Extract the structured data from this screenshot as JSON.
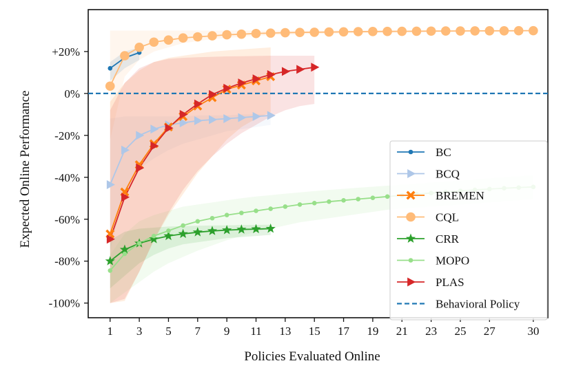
{
  "chart_data": {
    "type": "line",
    "title": "",
    "xlabel": "Policies Evaluated Online",
    "ylabel": "Expected Online Performance",
    "xlim": [
      -0.5,
      31
    ],
    "ylim": [
      -107,
      40
    ],
    "xticks": [
      1,
      3,
      5,
      7,
      9,
      11,
      13,
      15,
      17,
      19,
      21,
      23,
      25,
      27,
      30
    ],
    "yticks": [
      {
        "value": 20,
        "label": "+20%"
      },
      {
        "value": 0,
        "label": "0%"
      },
      {
        "value": -20,
        "label": "-20%"
      },
      {
        "value": -40,
        "label": "-40%"
      },
      {
        "value": -60,
        "label": "-60%"
      },
      {
        "value": -80,
        "label": "-80%"
      },
      {
        "value": -100,
        "label": "-100%"
      }
    ],
    "legend_position": "lower-right",
    "series": [
      {
        "name": "BC",
        "color": "#1f77b4",
        "marker": "dot",
        "x": [
          1,
          2,
          3
        ],
        "values": [
          12,
          17,
          19.5
        ],
        "band_upper": [
          15,
          20,
          22
        ],
        "band_lower": [
          6,
          12,
          16
        ]
      },
      {
        "name": "BCQ",
        "color": "#aec7e8",
        "marker": "triangle-right",
        "x": [
          1,
          2,
          3,
          4,
          5,
          6,
          7,
          8,
          9,
          10,
          11,
          12
        ],
        "values": [
          -43.5,
          -27,
          -20,
          -17,
          -15,
          -14,
          -13,
          -12.5,
          -12,
          -11.5,
          -11,
          -10.5
        ],
        "band_upper": [
          -12,
          -11,
          -11,
          -11,
          -11,
          -11,
          -10.5,
          -10.5,
          -10.5,
          -10,
          -10,
          -10
        ],
        "band_lower": [
          -75,
          -48,
          -36,
          -31,
          -27,
          -24,
          -22,
          -20,
          -18,
          -17,
          -16,
          -15
        ]
      },
      {
        "name": "BREMEN",
        "color": "#ff7f0e",
        "marker": "x",
        "x": [
          1,
          2,
          3,
          4,
          5,
          6,
          7,
          8,
          9,
          10,
          11,
          12
        ],
        "values": [
          -67,
          -47,
          -34,
          -24,
          -16,
          -11,
          -6,
          -2,
          2,
          4,
          6,
          8
        ],
        "band_upper": [
          -4,
          5,
          11,
          15,
          17,
          18,
          19,
          20,
          20.5,
          21,
          21.5,
          22
        ],
        "band_lower": [
          -100,
          -99,
          -85,
          -70,
          -58,
          -48,
          -38,
          -30,
          -22,
          -16,
          -12,
          -9
        ]
      },
      {
        "name": "CQL",
        "color": "#ffbb78",
        "marker": "circle",
        "x": [
          1,
          2,
          3,
          4,
          5,
          6,
          7,
          8,
          9,
          10,
          11,
          12,
          13,
          14,
          15,
          16,
          17,
          18,
          19,
          20,
          21,
          22,
          23,
          24,
          25,
          26,
          27,
          28,
          29,
          30
        ],
        "values": [
          3.5,
          18,
          22,
          24.5,
          25.5,
          26.5,
          27,
          27.5,
          28,
          28.3,
          28.6,
          28.8,
          29,
          29.1,
          29.2,
          29.3,
          29.4,
          29.5,
          29.55,
          29.6,
          29.65,
          29.7,
          29.75,
          29.8,
          29.82,
          29.85,
          29.88,
          29.9,
          29.92,
          29.95
        ],
        "band_upper": [
          30,
          30,
          30,
          30,
          30,
          30,
          30,
          30,
          30,
          30,
          30,
          30,
          30,
          30,
          30,
          30,
          30,
          30,
          30,
          30,
          30,
          30,
          30,
          30,
          30,
          30,
          30,
          30,
          30,
          30
        ],
        "band_lower": [
          -22,
          8,
          16,
          20,
          22,
          24,
          25,
          26,
          26.5,
          27,
          27.5,
          27.8,
          28,
          28.2,
          28.4,
          28.5,
          28.6,
          28.7,
          28.8,
          28.9,
          29,
          29.1,
          29.2,
          29.3,
          29.4,
          29.5,
          29.6,
          29.7,
          29.8,
          29.9
        ]
      },
      {
        "name": "CRR",
        "color": "#2ca02c",
        "marker": "star",
        "x": [
          1,
          2,
          3,
          4,
          5,
          6,
          7,
          8,
          9,
          10,
          11,
          12
        ],
        "values": [
          -80,
          -74.5,
          -71.5,
          -69.5,
          -68,
          -67,
          -66.2,
          -65.6,
          -65.2,
          -64.9,
          -64.7,
          -64.5
        ],
        "band_upper": [
          -70,
          -66,
          -64.5,
          -64,
          -63.5,
          -63.3,
          -63.1,
          -63,
          -62.9,
          -62.8,
          -62.7,
          -62.6
        ],
        "band_lower": [
          -93,
          -87,
          -81,
          -77,
          -74,
          -72,
          -71,
          -70,
          -69,
          -68.5,
          -68,
          -67.5
        ]
      },
      {
        "name": "MOPO",
        "color": "#98df8a",
        "marker": "dot",
        "x": [
          1,
          2,
          3,
          4,
          5,
          6,
          7,
          8,
          9,
          10,
          11,
          12,
          13,
          14,
          15,
          16,
          17,
          18,
          19,
          20,
          21,
          22,
          23,
          24,
          25,
          26,
          27,
          28,
          29,
          30
        ],
        "values": [
          -84.5,
          -76.5,
          -71.5,
          -68,
          -65.5,
          -63,
          -61,
          -59.5,
          -58,
          -57,
          -56,
          -55,
          -54,
          -53,
          -52.3,
          -51.6,
          -51,
          -50.4,
          -49.8,
          -49.2,
          -48.6,
          -48,
          -47.5,
          -47,
          -46.5,
          -46,
          -45.6,
          -45.2,
          -44.9,
          -44.6
        ],
        "band_upper": [
          -77,
          -67,
          -61,
          -58,
          -56,
          -54,
          -53,
          -52,
          -51,
          -50,
          -49.2,
          -48.5,
          -47.8,
          -47.2,
          -46.6,
          -46,
          -45.5,
          -45,
          -44.5,
          -44,
          -43.5,
          -43,
          -42.5,
          -42,
          -41.5,
          -41,
          -40.5,
          -40,
          -39.5,
          -39
        ],
        "band_lower": [
          -100,
          -95,
          -90,
          -85,
          -81,
          -78,
          -75,
          -72.5,
          -70,
          -68,
          -66,
          -64.5,
          -63,
          -61.5,
          -60.5,
          -59.5,
          -58.5,
          -57.5,
          -56.5,
          -55.5,
          -55,
          -54.5,
          -54,
          -53.5,
          -53,
          -52.5,
          -52,
          -51.5,
          -51,
          -50.5
        ]
      },
      {
        "name": "PLAS",
        "color": "#d62728",
        "marker": "triangle-right",
        "x": [
          1,
          2,
          3,
          4,
          5,
          6,
          7,
          8,
          9,
          10,
          11,
          12,
          13,
          14,
          15
        ],
        "values": [
          -69.5,
          -49.5,
          -35.5,
          -25,
          -16.5,
          -10,
          -5,
          -0.5,
          2.5,
          5,
          7,
          9,
          10.5,
          11.5,
          12.5
        ],
        "band_upper": [
          -8,
          5,
          12,
          15,
          16.5,
          17,
          17.3,
          17.5,
          17.7,
          17.8,
          17.9,
          18,
          18,
          18,
          18
        ],
        "band_lower": [
          -100,
          -98,
          -85,
          -70,
          -57,
          -46,
          -37,
          -30,
          -24,
          -19,
          -15,
          -11,
          -8,
          -6,
          -5
        ]
      },
      {
        "name": "Behavioral Policy",
        "color": "#1f77b4",
        "marker": "dashed-line",
        "y": 0
      }
    ]
  }
}
